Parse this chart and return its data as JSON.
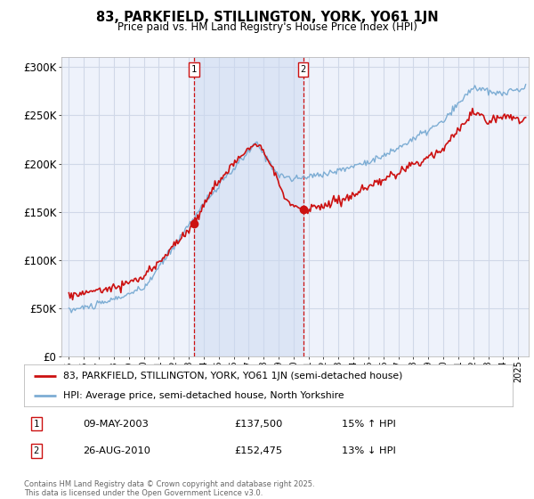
{
  "title": "83, PARKFIELD, STILLINGTON, YORK, YO61 1JN",
  "subtitle": "Price paid vs. HM Land Registry's House Price Index (HPI)",
  "ytick_labels": [
    "£0",
    "£50K",
    "£100K",
    "£150K",
    "£200K",
    "£250K",
    "£300K"
  ],
  "yticks": [
    0,
    50000,
    100000,
    150000,
    200000,
    250000,
    300000
  ],
  "legend_entry1": "83, PARKFIELD, STILLINGTON, YORK, YO61 1JN (semi-detached house)",
  "legend_entry2": "HPI: Average price, semi-detached house, North Yorkshire",
  "sale1_date": "09-MAY-2003",
  "sale1_price": "£137,500",
  "sale1_hpi": "15% ↑ HPI",
  "sale2_date": "26-AUG-2010",
  "sale2_price": "£152,475",
  "sale2_hpi": "13% ↓ HPI",
  "footer": "Contains HM Land Registry data © Crown copyright and database right 2025.\nThis data is licensed under the Open Government Licence v3.0.",
  "background_color": "#ffffff",
  "plot_bg_color": "#eef2fb",
  "grid_color": "#d0d8e8",
  "shade_color": "#ccd9f0",
  "hpi_color": "#7dadd4",
  "price_color": "#cc1111",
  "marker_color": "#cc1111",
  "vline_color": "#cc1111",
  "sale1_x": 2003.35,
  "sale2_x": 2010.65,
  "sale1_y": 137500,
  "sale2_y": 152475,
  "xmin": 1994.5,
  "xmax": 2025.7,
  "ylim": [
    0,
    310000
  ]
}
